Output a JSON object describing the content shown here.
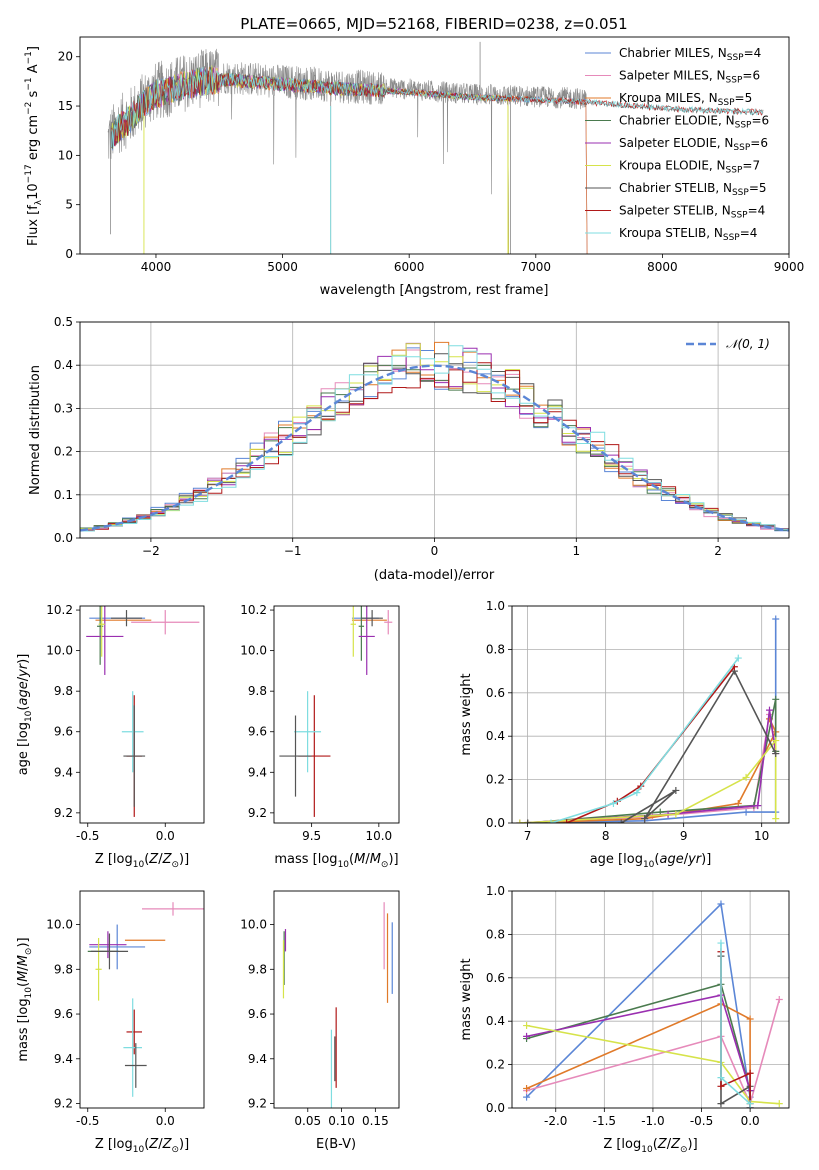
{
  "figure": {
    "title": "PLATE=0665, MJD=52168, FIBERID=0238, z=0.051"
  },
  "colors": {
    "chabrier_miles": "#5b86d6",
    "salpeter_miles": "#e68aba",
    "kroupa_miles": "#e07a2a",
    "chabrier_elodie": "#4a7a4e",
    "salpeter_elodie": "#9a2fb0",
    "kroupa_elodie": "#d6e34a",
    "chabrier_stelib": "#555555",
    "salpeter_stelib": "#b01818",
    "kroupa_stelib": "#7fdde0",
    "data_gray": "#8a8a8a",
    "grid": "#b0b0b0",
    "gauss": "#5b86d6"
  },
  "chart_data": [
    {
      "id": "spectrum",
      "type": "line",
      "xlabel": "wavelength [Angstrom, rest frame]",
      "ylabel": "Flux [f_λ10^-17 erg cm^-2 s^-1 A^-1]",
      "xlim": [
        3400,
        9000
      ],
      "ylim": [
        0,
        22
      ],
      "xticks": [
        4000,
        5000,
        6000,
        7000,
        8000,
        9000
      ],
      "yticks": [
        0,
        5,
        10,
        15,
        20
      ],
      "grid": false,
      "legend_position": "top-right",
      "envelope": {
        "wavelength": [
          3620,
          3700,
          3800,
          3900,
          4000,
          4100,
          4200,
          4300,
          4400,
          4500,
          4700,
          4900,
          5100,
          5300,
          5500,
          5700,
          5900,
          6100,
          6300,
          6500,
          6700,
          6900,
          7100,
          7300,
          7500,
          7700,
          7900,
          8100,
          8300,
          8500,
          8700,
          8900
        ],
        "flux": [
          11.5,
          13.0,
          14.0,
          15.5,
          16.5,
          16.8,
          17.3,
          17.6,
          17.9,
          18.0,
          17.8,
          17.6,
          17.4,
          17.2,
          17.0,
          16.9,
          16.8,
          16.6,
          16.4,
          16.2,
          16.1,
          16.0,
          15.9,
          15.8,
          15.6,
          15.4,
          15.2,
          15.0,
          14.9,
          14.8,
          14.7,
          14.6
        ]
      },
      "series": [
        {
          "name": "Chabrier MILES, N_SSP=4",
          "label_main": "Chabrier MILES, N",
          "n_ssp": "4",
          "color_key": "chabrier_miles",
          "end": 7400
        },
        {
          "name": "Salpeter MILES, N_SSP=6",
          "label_main": "Salpeter MILES, N",
          "n_ssp": "6",
          "color_key": "salpeter_miles",
          "end": 7400
        },
        {
          "name": "Kroupa MILES, N_SSP=5",
          "label_main": "Kroupa MILES, N",
          "n_ssp": "5",
          "color_key": "kroupa_miles",
          "end": 7400
        },
        {
          "name": "Chabrier ELODIE, N_SSP=6",
          "label_main": "Chabrier ELODIE, N",
          "n_ssp": "6",
          "color_key": "chabrier_elodie",
          "end": 6780
        },
        {
          "name": "Salpeter ELODIE, N_SSP=6",
          "label_main": "Salpeter ELODIE, N",
          "n_ssp": "6",
          "color_key": "salpeter_elodie",
          "end": 6780
        },
        {
          "name": "Kroupa ELODIE, N_SSP=7",
          "label_main": "Kroupa ELODIE, N",
          "n_ssp": "7",
          "color_key": "kroupa_elodie",
          "end": 6780
        },
        {
          "name": "Chabrier STELIB, N_SSP=5",
          "label_main": "Chabrier STELIB, N",
          "n_ssp": "5",
          "color_key": "chabrier_stelib",
          "end": 8800
        },
        {
          "name": "Salpeter STELIB, N_SSP=4",
          "label_main": "Salpeter STELIB, N",
          "n_ssp": "4",
          "color_key": "salpeter_stelib",
          "end": 8800
        },
        {
          "name": "Kroupa STELIB, N_SSP=4",
          "label_main": "Kroupa STELIB, N",
          "n_ssp": "4",
          "color_key": "kroupa_stelib",
          "end": 8800
        }
      ]
    },
    {
      "id": "residual-hist",
      "type": "histogram",
      "xlabel": "(data-model)/error",
      "ylabel": "Normed distribution",
      "xlim": [
        -2.5,
        2.5
      ],
      "ylim": [
        0,
        0.5
      ],
      "xticks": [
        -2,
        -1,
        0,
        1,
        2
      ],
      "yticks": [
        0.0,
        0.1,
        0.2,
        0.3,
        0.4,
        0.5
      ],
      "grid": true,
      "legend_position": "top-right",
      "legend_label": "N(0, 1)",
      "bin_width": 0.1,
      "bin_start": -2.5,
      "reference_curve": "gaussian mean 0 sigma 1"
    },
    {
      "id": "age-vs-z",
      "type": "errorbar",
      "xlabel": "Z [log10(Z/Z⊙)]",
      "ylabel": "age  [log10(age/yr)]",
      "xlim": [
        -0.55,
        0.25
      ],
      "ylim": [
        9.15,
        10.22
      ],
      "xticks": [
        -0.5,
        0.0
      ],
      "yticks": [
        9.2,
        9.4,
        9.6,
        9.8,
        10.0,
        10.2
      ],
      "grid": false,
      "points": [
        {
          "color_key": "chabrier_miles",
          "x": -0.31,
          "y": 10.16,
          "xerr": 0.18,
          "yerr": 0.0
        },
        {
          "color_key": "salpeter_miles",
          "x": 0.0,
          "y": 10.14,
          "xerr": 0.22,
          "yerr": 0.06
        },
        {
          "color_key": "kroupa_miles",
          "x": -0.27,
          "y": 10.15,
          "xerr": 0.18,
          "yerr": 0.0
        },
        {
          "color_key": "chabrier_elodie",
          "x": -0.42,
          "y": 10.12,
          "xerr": 0.02,
          "yerr": 0.19
        },
        {
          "color_key": "salpeter_elodie",
          "x": -0.39,
          "y": 10.07,
          "xerr": 0.12,
          "yerr": 0.19
        },
        {
          "color_key": "kroupa_elodie",
          "x": -0.41,
          "y": 10.13,
          "xerr": 0.02,
          "yerr": 0.16
        },
        {
          "color_key": "chabrier_stelib",
          "x": -0.25,
          "y": 10.16,
          "xerr": 0.1,
          "yerr": 0.04
        },
        {
          "color_key": "salpeter_stelib",
          "x": -0.2,
          "y": 9.48,
          "xerr": 0.05,
          "yerr": 0.3
        },
        {
          "color_key": "kroupa_stelib",
          "x": -0.21,
          "y": 9.6,
          "xerr": 0.07,
          "yerr": 0.2
        },
        {
          "color_key": "chabrier_stelib",
          "x": -0.2,
          "y": 9.48,
          "xerr": 0.07,
          "yerr": 0.25
        }
      ]
    },
    {
      "id": "age-vs-mass",
      "type": "errorbar",
      "xlabel": "mass [log10(M/M⊙)]",
      "ylabel": "",
      "xlim": [
        9.22,
        10.15
      ],
      "ylim": [
        9.15,
        10.22
      ],
      "xticks": [
        9.5,
        10.0
      ],
      "yticks": [
        9.2,
        9.4,
        9.6,
        9.8,
        10.0,
        10.2
      ],
      "grid": false,
      "points": [
        {
          "color_key": "chabrier_miles",
          "x": 9.9,
          "y": 10.16,
          "xerr": 0.1,
          "yerr": 0.0
        },
        {
          "color_key": "salpeter_miles",
          "x": 10.07,
          "y": 10.14,
          "xerr": 0.03,
          "yerr": 0.06
        },
        {
          "color_key": "kroupa_miles",
          "x": 9.93,
          "y": 10.15,
          "xerr": 0.13,
          "yerr": 0.0
        },
        {
          "color_key": "chabrier_elodie",
          "x": 9.87,
          "y": 10.12,
          "xerr": 0.02,
          "yerr": 0.17
        },
        {
          "color_key": "salpeter_elodie",
          "x": 9.91,
          "y": 10.07,
          "xerr": 0.06,
          "yerr": 0.19
        },
        {
          "color_key": "kroupa_elodie",
          "x": 9.81,
          "y": 10.13,
          "xerr": 0.02,
          "yerr": 0.16
        },
        {
          "color_key": "chabrier_stelib",
          "x": 9.95,
          "y": 10.16,
          "xerr": 0.08,
          "yerr": 0.04
        },
        {
          "color_key": "salpeter_stelib",
          "x": 9.52,
          "y": 9.48,
          "xerr": 0.12,
          "yerr": 0.3
        },
        {
          "color_key": "kroupa_stelib",
          "x": 9.47,
          "y": 9.6,
          "xerr": 0.1,
          "yerr": 0.2
        },
        {
          "color_key": "chabrier_stelib",
          "x": 9.38,
          "y": 9.48,
          "xerr": 0.12,
          "yerr": 0.2
        }
      ]
    },
    {
      "id": "mass-weight-vs-age",
      "type": "line",
      "xlabel": "age  [log10(age/yr)]",
      "ylabel": "mass weight",
      "xlim": [
        6.8,
        10.35
      ],
      "ylim": [
        0,
        1.0
      ],
      "xticks": [
        7,
        8,
        9,
        10
      ],
      "yticks": [
        0.0,
        0.2,
        0.4,
        0.6,
        0.8,
        1.0
      ],
      "grid": true,
      "series": [
        {
          "color_key": "chabrier_miles",
          "x": [
            7.0,
            8.5,
            9.8,
            10.18,
            10.18
          ],
          "y": [
            0.0,
            0.01,
            0.05,
            0.05,
            0.94
          ]
        },
        {
          "color_key": "salpeter_miles",
          "x": [
            7.0,
            8.6,
            9.9,
            10.1,
            10.18
          ],
          "y": [
            0.0,
            0.03,
            0.07,
            0.5,
            0.33
          ]
        },
        {
          "color_key": "kroupa_miles",
          "x": [
            7.0,
            8.5,
            9.7,
            10.18,
            10.1
          ],
          "y": [
            0.0,
            0.02,
            0.09,
            0.42,
            0.48
          ]
        },
        {
          "color_key": "chabrier_elodie",
          "x": [
            7.0,
            8.7,
            9.9,
            10.18,
            10.18
          ],
          "y": [
            0.0,
            0.05,
            0.08,
            0.57,
            0.33
          ]
        },
        {
          "color_key": "salpeter_elodie",
          "x": [
            6.9,
            8.8,
            9.95,
            10.1,
            10.18
          ],
          "y": [
            0.0,
            0.04,
            0.08,
            0.52,
            0.32
          ]
        },
        {
          "color_key": "kroupa_elodie",
          "x": [
            6.9,
            8.9,
            9.8,
            10.18,
            10.18
          ],
          "y": [
            0.0,
            0.04,
            0.21,
            0.38,
            0.02
          ]
        },
        {
          "color_key": "chabrier_stelib",
          "x": [
            7.0,
            8.2,
            8.9,
            8.5,
            9.65,
            10.18
          ],
          "y": [
            0.0,
            0.0,
            0.15,
            0.02,
            0.7,
            0.32
          ]
        },
        {
          "color_key": "salpeter_stelib",
          "x": [
            7.5,
            8.15,
            8.45,
            9.65
          ],
          "y": [
            0.0,
            0.1,
            0.17,
            0.72
          ]
        },
        {
          "color_key": "kroupa_stelib",
          "x": [
            7.3,
            8.1,
            8.4,
            9.7
          ],
          "y": [
            0.0,
            0.09,
            0.14,
            0.76
          ]
        }
      ]
    },
    {
      "id": "mass-vs-z",
      "type": "errorbar",
      "xlabel": "Z [log10(Z/Z⊙)]",
      "ylabel": "mass [log10(M/M⊙)]",
      "xlim": [
        -0.55,
        0.25
      ],
      "ylim": [
        9.18,
        10.15
      ],
      "xticks": [
        -0.5,
        0.0
      ],
      "yticks": [
        9.2,
        9.4,
        9.6,
        9.8,
        10.0
      ],
      "grid": false,
      "points": [
        {
          "color_key": "chabrier_miles",
          "x": -0.31,
          "y": 9.9,
          "xerr": 0.18,
          "yerr": 0.1
        },
        {
          "color_key": "salpeter_miles",
          "x": 0.05,
          "y": 10.07,
          "xerr": 0.2,
          "yerr": 0.03
        },
        {
          "color_key": "kroupa_miles",
          "x": -0.13,
          "y": 9.93,
          "xerr": 0.13,
          "yerr": 0.0
        },
        {
          "color_key": "chabrier_elodie",
          "x": -0.4,
          "y": 9.88,
          "xerr": 0.1,
          "yerr": 0.0
        },
        {
          "color_key": "salpeter_elodie",
          "x": -0.37,
          "y": 9.91,
          "xerr": 0.12,
          "yerr": 0.06
        },
        {
          "color_key": "kroupa_elodie",
          "x": -0.43,
          "y": 9.8,
          "xerr": 0.02,
          "yerr": 0.14
        },
        {
          "color_key": "chabrier_stelib",
          "x": -0.36,
          "y": 9.88,
          "xerr": 0.12,
          "yerr": 0.08
        },
        {
          "color_key": "salpeter_stelib",
          "x": -0.2,
          "y": 9.52,
          "xerr": 0.05,
          "yerr": 0.1
        },
        {
          "color_key": "kroupa_stelib",
          "x": -0.21,
          "y": 9.45,
          "xerr": 0.06,
          "yerr": 0.22
        },
        {
          "color_key": "chabrier_stelib",
          "x": -0.19,
          "y": 9.37,
          "xerr": 0.07,
          "yerr": 0.1
        }
      ]
    },
    {
      "id": "mass-vs-ebv",
      "type": "errorbar",
      "xlabel": "E(B-V)",
      "ylabel": "",
      "xlim": [
        0.0,
        0.185
      ],
      "ylim": [
        9.18,
        10.15
      ],
      "xticks": [
        0.05,
        0.1,
        0.15
      ],
      "yticks": [
        9.2,
        9.4,
        9.6,
        9.8,
        10.0
      ],
      "grid": false,
      "points": [
        {
          "color_key": "chabrier_miles",
          "x": 0.175,
          "y": 9.85,
          "xerr": 0.0,
          "yerr": 0.16
        },
        {
          "color_key": "salpeter_miles",
          "x": 0.163,
          "y": 9.95,
          "xerr": 0.0,
          "yerr": 0.15
        },
        {
          "color_key": "kroupa_miles",
          "x": 0.168,
          "y": 9.85,
          "xerr": 0.0,
          "yerr": 0.2
        },
        {
          "color_key": "chabrier_elodie",
          "x": 0.015,
          "y": 9.85,
          "xerr": 0.0,
          "yerr": 0.12
        },
        {
          "color_key": "salpeter_elodie",
          "x": 0.017,
          "y": 9.93,
          "xerr": 0.0,
          "yerr": 0.05
        },
        {
          "color_key": "kroupa_elodie",
          "x": 0.014,
          "y": 9.8,
          "xerr": 0.0,
          "yerr": 0.13
        },
        {
          "color_key": "salpeter_stelib",
          "x": 0.092,
          "y": 9.45,
          "xerr": 0.0,
          "yerr": 0.18
        },
        {
          "color_key": "kroupa_stelib",
          "x": 0.085,
          "y": 9.35,
          "xerr": 0.0,
          "yerr": 0.18
        },
        {
          "color_key": "chabrier_stelib",
          "x": 0.09,
          "y": 9.4,
          "xerr": 0.0,
          "yerr": 0.1
        }
      ]
    },
    {
      "id": "mass-weight-vs-z",
      "type": "line",
      "xlabel": "Z [log10(Z/Z⊙)]",
      "ylabel": "mass weight",
      "xlim": [
        -2.45,
        0.4
      ],
      "ylim": [
        0,
        1.0
      ],
      "xticks": [
        -2.0,
        -1.5,
        -1.0,
        -0.5,
        0.0
      ],
      "yticks": [
        0.0,
        0.2,
        0.4,
        0.6,
        0.8,
        1.0
      ],
      "grid": true,
      "series": [
        {
          "color_key": "chabrier_miles",
          "x": [
            -2.3,
            -0.3,
            0.0,
            0.0
          ],
          "y": [
            0.05,
            0.94,
            0.05,
            0.0
          ]
        },
        {
          "color_key": "salpeter_miles",
          "x": [
            -2.3,
            -0.3,
            0.0,
            0.3
          ],
          "y": [
            0.08,
            0.33,
            0.02,
            0.5
          ]
        },
        {
          "color_key": "kroupa_miles",
          "x": [
            -2.3,
            -0.3,
            0.0,
            0.0
          ],
          "y": [
            0.09,
            0.48,
            0.41,
            0.02
          ]
        },
        {
          "color_key": "chabrier_elodie",
          "x": [
            -2.3,
            -0.3,
            0.0,
            0.0
          ],
          "y": [
            0.32,
            0.57,
            0.08,
            0.0
          ]
        },
        {
          "color_key": "salpeter_elodie",
          "x": [
            -2.3,
            -0.3,
            0.0,
            0.0
          ],
          "y": [
            0.33,
            0.52,
            0.08,
            0.0
          ]
        },
        {
          "color_key": "kroupa_elodie",
          "x": [
            -2.3,
            -0.3,
            0.0,
            0.3
          ],
          "y": [
            0.38,
            0.21,
            0.03,
            0.02
          ]
        },
        {
          "color_key": "chabrier_stelib",
          "x": [
            -0.3,
            -0.3,
            0.0,
            0.0
          ],
          "y": [
            0.7,
            0.02,
            0.1,
            0.0
          ]
        },
        {
          "color_key": "salpeter_stelib",
          "x": [
            -0.3,
            -0.3,
            0.0,
            0.0
          ],
          "y": [
            0.72,
            0.1,
            0.16,
            0.0
          ]
        },
        {
          "color_key": "kroupa_stelib",
          "x": [
            -0.3,
            -0.3,
            0.0,
            0.0
          ],
          "y": [
            0.76,
            0.14,
            0.02,
            0.0
          ]
        }
      ]
    }
  ]
}
